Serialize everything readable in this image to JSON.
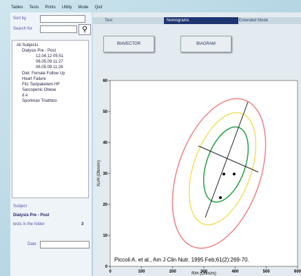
{
  "menu": [
    "Tables",
    "Tests",
    "Prints",
    "Utility",
    "Mode",
    "Quit"
  ],
  "sidebar": {
    "sort_label": "Sort by",
    "search_label": "Search for",
    "tree": [
      "All Subjects",
      "Dialysis Pre - Post",
      "12.04.12 05:51",
      "06.05.09 11:27",
      "06.05.09 11:26",
      "Diet. Female Follow Up",
      "Heart Failure",
      "Fitz Tastpaketem HF",
      "Sarcopenic Obese",
      "d e",
      "Sportman Triathlon"
    ],
    "subject_label": "Subject",
    "subject": "Dialysis Pre - Post",
    "tests_label": "tests in the folder",
    "tests_count": 3,
    "date_label": "Date"
  },
  "tabs": [
    "Test",
    "Nomograms",
    "Extended Mode"
  ],
  "buttons": [
    "BIAVECTOR",
    "BIAGRAM"
  ],
  "chart_data": {
    "type": "scatter",
    "x_label": "R/H (Ohm/m)",
    "y_label": "Xc/H (Ohm/m)",
    "annotation": "Piccoli A. et al., Am J Clin Nutr. 1995 Feb;61(2):269-70.",
    "x": [
      364,
      397,
      353
    ],
    "y": [
      29.8,
      29.8,
      22.2
    ],
    "color": "#000000",
    "xlim": [
      0,
      600
    ],
    "ylim": [
      0,
      60
    ],
    "xticks": [
      0,
      100,
      200,
      300,
      400,
      500,
      600
    ],
    "yticks": [
      0,
      10,
      20,
      30,
      40,
      50,
      60
    ]
  }
}
